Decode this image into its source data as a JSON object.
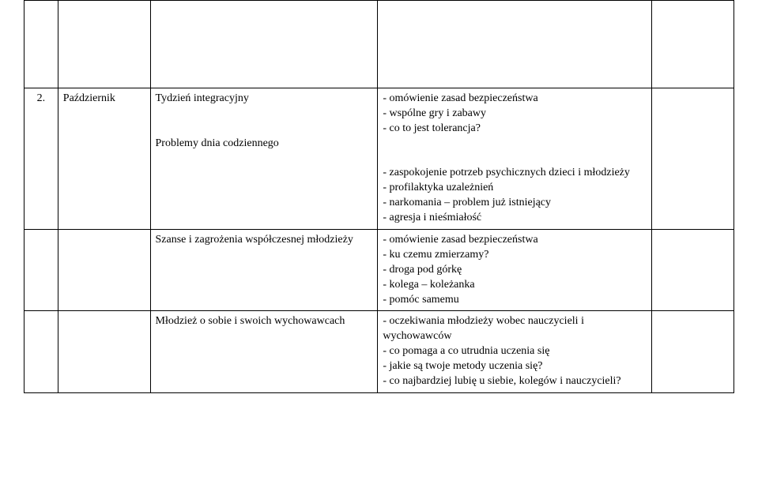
{
  "table": {
    "row1": {
      "num": "2.",
      "month": "Październik",
      "topic1": "Tydzień integracyjny",
      "topic2": "Problemy dnia codziennego",
      "desc_lines": [
        "- omówienie zasad bezpieczeństwa",
        "- wspólne gry i zabawy",
        "- co to jest tolerancja?",
        "",
        "- zaspokojenie potrzeb psychicznych dzieci i młodzieży",
        "- profilaktyka uzależnień",
        "- narkomania – problem już istniejący",
        "- agresja i nieśmiałość"
      ]
    },
    "row2": {
      "topic": "Szanse i zagrożenia współczesnej młodzieży",
      "desc_lines": [
        "- omówienie zasad bezpieczeństwa",
        "- ku czemu zmierzamy?",
        "- droga pod górkę",
        "- kolega – koleżanka",
        "- pomóc samemu"
      ]
    },
    "row3": {
      "topic": "Młodzież o sobie i swoich wychowawcach",
      "desc_lines": [
        "- oczekiwania młodzieży wobec nauczycieli i wychowawców",
        "- co pomaga a co utrudnia uczenia się",
        "- jakie są twoje metody uczenia się?",
        "- co najbardziej lubię u siebie, kolegów i nauczycieli?"
      ]
    }
  },
  "style": {
    "font_family": "Times New Roman",
    "font_size_pt": 11,
    "border_color": "#000000",
    "background": "#ffffff",
    "text_color": "#000000"
  }
}
